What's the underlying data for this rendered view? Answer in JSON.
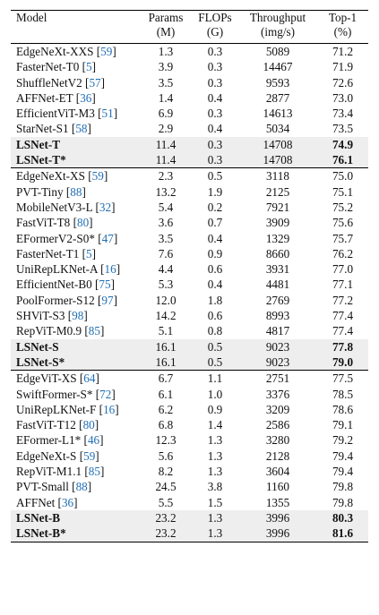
{
  "headers": [
    {
      "line1": "Model",
      "line2": ""
    },
    {
      "line1": "Params",
      "line2": "(M)"
    },
    {
      "line1": "FLOPs",
      "line2": "(G)"
    },
    {
      "line1": "Throughput",
      "line2": "(img/s)"
    },
    {
      "line1": "Top-1",
      "line2": "(%)"
    }
  ],
  "groups": [
    [
      {
        "name": "EdgeNeXt-XXS",
        "cite": "59",
        "params": "1.3",
        "flops": "0.3",
        "throughput": "5089",
        "top1": "71.2"
      },
      {
        "name": "FasterNet-T0",
        "cite": "5",
        "params": "3.9",
        "flops": "0.3",
        "throughput": "14467",
        "top1": "71.9"
      },
      {
        "name": "ShuffleNetV2",
        "cite": "57",
        "params": "3.5",
        "flops": "0.3",
        "throughput": "9593",
        "top1": "72.6"
      },
      {
        "name": "AFFNet-ET",
        "cite": "36",
        "params": "1.4",
        "flops": "0.4",
        "throughput": "2877",
        "top1": "73.0"
      },
      {
        "name": "EfficientViT-M3",
        "cite": "51",
        "params": "6.9",
        "flops": "0.3",
        "throughput": "14613",
        "top1": "73.4"
      },
      {
        "name": "StarNet-S1",
        "cite": "58",
        "params": "2.9",
        "flops": "0.4",
        "throughput": "5034",
        "top1": "73.5"
      },
      {
        "name": "LSNet-T",
        "cite": "",
        "params": "11.4",
        "flops": "0.3",
        "throughput": "14708",
        "top1": "74.9",
        "highlight": true
      },
      {
        "name": "LSNet-T*",
        "cite": "",
        "params": "11.4",
        "flops": "0.3",
        "throughput": "14708",
        "top1": "76.1",
        "highlight": true
      }
    ],
    [
      {
        "name": "EdgeNeXt-XS",
        "cite": "59",
        "params": "2.3",
        "flops": "0.5",
        "throughput": "3118",
        "top1": "75.0"
      },
      {
        "name": "PVT-Tiny",
        "cite": "88",
        "params": "13.2",
        "flops": "1.9",
        "throughput": "2125",
        "top1": "75.1"
      },
      {
        "name": "MobileNetV3-L",
        "cite": "32",
        "params": "5.4",
        "flops": "0.2",
        "throughput": "7921",
        "top1": "75.2"
      },
      {
        "name": "FastViT-T8",
        "cite": "80",
        "params": "3.6",
        "flops": "0.7",
        "throughput": "3909",
        "top1": "75.6"
      },
      {
        "name": "EFormerV2-S0*",
        "cite": "47",
        "params": "3.5",
        "flops": "0.4",
        "throughput": "1329",
        "top1": "75.7"
      },
      {
        "name": "FasterNet-T1",
        "cite": "5",
        "params": "7.6",
        "flops": "0.9",
        "throughput": "8660",
        "top1": "76.2"
      },
      {
        "name": "UniRepLKNet-A",
        "cite": "16",
        "params": "4.4",
        "flops": "0.6",
        "throughput": "3931",
        "top1": "77.0"
      },
      {
        "name": "EfficientNet-B0",
        "cite": "75",
        "params": "5.3",
        "flops": "0.4",
        "throughput": "4481",
        "top1": "77.1"
      },
      {
        "name": "PoolFormer-S12",
        "cite": "97",
        "params": "12.0",
        "flops": "1.8",
        "throughput": "2769",
        "top1": "77.2"
      },
      {
        "name": "SHViT-S3",
        "cite": "98",
        "params": "14.2",
        "flops": "0.6",
        "throughput": "8993",
        "top1": "77.4"
      },
      {
        "name": "RepViT-M0.9",
        "cite": "85",
        "params": "5.1",
        "flops": "0.8",
        "throughput": "4817",
        "top1": "77.4"
      },
      {
        "name": "LSNet-S",
        "cite": "",
        "params": "16.1",
        "flops": "0.5",
        "throughput": "9023",
        "top1": "77.8",
        "highlight": true
      },
      {
        "name": "LSNet-S*",
        "cite": "",
        "params": "16.1",
        "flops": "0.5",
        "throughput": "9023",
        "top1": "79.0",
        "highlight": true
      }
    ],
    [
      {
        "name": "EdgeViT-XS",
        "cite": "64",
        "params": "6.7",
        "flops": "1.1",
        "throughput": "2751",
        "top1": "77.5"
      },
      {
        "name": "SwiftFormer-S*",
        "cite": "72",
        "params": "6.1",
        "flops": "1.0",
        "throughput": "3376",
        "top1": "78.5"
      },
      {
        "name": "UniRepLKNet-F",
        "cite": "16",
        "params": "6.2",
        "flops": "0.9",
        "throughput": "3209",
        "top1": "78.6"
      },
      {
        "name": "FastViT-T12",
        "cite": "80",
        "params": "6.8",
        "flops": "1.4",
        "throughput": "2586",
        "top1": "79.1"
      },
      {
        "name": "EFormer-L1*",
        "cite": "46",
        "params": "12.3",
        "flops": "1.3",
        "throughput": "3280",
        "top1": "79.2"
      },
      {
        "name": "EdgeNeXt-S",
        "cite": "59",
        "params": "5.6",
        "flops": "1.3",
        "throughput": "2128",
        "top1": "79.4"
      },
      {
        "name": "RepViT-M1.1",
        "cite": "85",
        "params": "8.2",
        "flops": "1.3",
        "throughput": "3604",
        "top1": "79.4"
      },
      {
        "name": "PVT-Small",
        "cite": "88",
        "params": "24.5",
        "flops": "3.8",
        "throughput": "1160",
        "top1": "79.8"
      },
      {
        "name": "AFFNet",
        "cite": "36",
        "params": "5.5",
        "flops": "1.5",
        "throughput": "1355",
        "top1": "79.8"
      },
      {
        "name": "LSNet-B",
        "cite": "",
        "params": "23.2",
        "flops": "1.3",
        "throughput": "3996",
        "top1": "80.3",
        "highlight": true
      },
      {
        "name": "LSNet-B*",
        "cite": "",
        "params": "23.2",
        "flops": "1.3",
        "throughput": "3996",
        "top1": "81.6",
        "highlight": true
      }
    ]
  ]
}
